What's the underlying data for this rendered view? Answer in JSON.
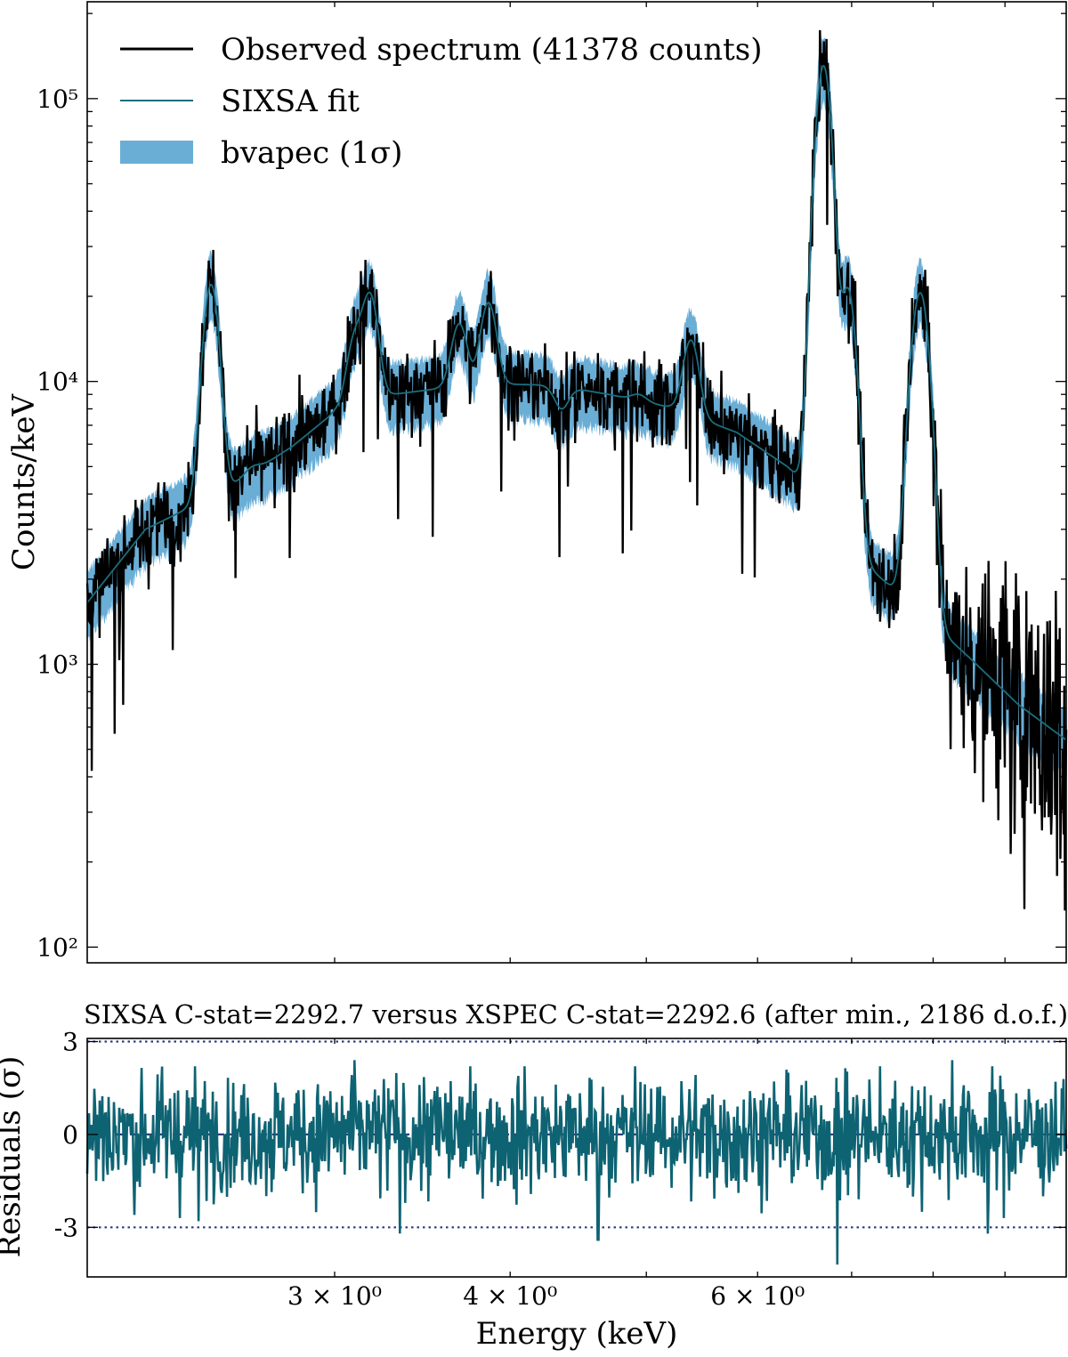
{
  "chart_data": [
    {
      "type": "line",
      "panel": "spectrum",
      "ylabel": "Counts/keV",
      "yscale": "log",
      "xscale": "log",
      "xlim": [
        2.0,
        9.95
      ],
      "ylim": [
        88,
        220000
      ],
      "yticks": [
        100,
        1000,
        10000,
        100000
      ],
      "ytick_labels": [
        "10²",
        "10³",
        "10⁴",
        "10⁵"
      ],
      "legend": {
        "position": "top-left",
        "entries": [
          "Observed spectrum (41378 counts)",
          "SIXSA fit",
          "bvapec (1σ)"
        ]
      },
      "series": [
        {
          "name": "Observed spectrum (41378 counts)",
          "color": "#000000"
        },
        {
          "name": "SIXSA fit",
          "color": "#1a6e7e"
        },
        {
          "name": "bvapec (1σ)",
          "color": "#6aaed6"
        }
      ],
      "continuum": {
        "x": [
          2.0,
          2.2,
          2.5,
          2.8,
          3.0,
          3.3,
          3.6,
          3.9,
          4.3,
          4.7,
          5.2,
          5.8,
          6.3,
          6.7,
          7.2,
          7.8,
          8.5,
          9.2,
          9.95
        ],
        "y": [
          1650,
          3000,
          4100,
          5900,
          7800,
          9000,
          9500,
          9800,
          9700,
          9000,
          8100,
          6600,
          5000,
          3700,
          2200,
          1550,
          1050,
          720,
          540
        ]
      },
      "lines": {
        "x": [
          2.45,
          2.62,
          3.1,
          3.18,
          3.68,
          3.86,
          4.35,
          4.94,
          5.38,
          6.68,
          6.7,
          6.96,
          7.78,
          7.88
        ],
        "peak": [
          22000,
          5000,
          14000,
          20000,
          16000,
          19000,
          8000,
          9000,
          14000,
          100000,
          35000,
          21000,
          12000,
          13000
        ]
      }
    },
    {
      "type": "line",
      "panel": "residuals",
      "title": "SIXSA C-stat=2292.7 versus XSPEC C-stat=2292.6 (after min., 2186 d.o.f.)",
      "xlabel": "Energy (keV)",
      "ylabel": "Residuals (σ)",
      "xscale": "log",
      "xlim": [
        2.0,
        9.95
      ],
      "ylim": [
        -4.6,
        3.1
      ],
      "xticks": [
        3,
        4,
        6
      ],
      "xtick_labels": [
        "3 × 10⁰",
        "4 × 10⁰",
        "6 × 10⁰"
      ],
      "yticks": [
        3,
        0,
        -3
      ],
      "ytick_labels": [
        "3",
        "0",
        "-3"
      ],
      "reference_lines": [
        3,
        0,
        -3
      ],
      "series": [
        {
          "name": "Residuals",
          "color": "#0e6373"
        }
      ],
      "notable_residuals": {
        "x": [
          2.16,
          2.4,
          3.34,
          4.62,
          6.84,
          8.75,
          3.1,
          8.25
        ],
        "y": [
          -2.6,
          -2.8,
          -3.2,
          -3.4,
          -4.2,
          -3.2,
          2.4,
          2.4
        ]
      }
    }
  ]
}
